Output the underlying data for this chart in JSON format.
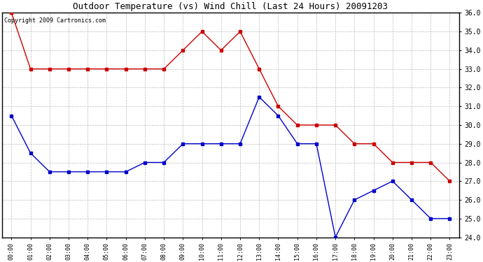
{
  "title": "Outdoor Temperature (vs) Wind Chill (Last 24 Hours) 20091203",
  "copyright_text": "Copyright 2009 Cartronics.com",
  "x_labels": [
    "00:00",
    "01:00",
    "02:00",
    "03:00",
    "04:00",
    "05:00",
    "06:00",
    "07:00",
    "08:00",
    "09:00",
    "10:00",
    "11:00",
    "12:00",
    "13:00",
    "14:00",
    "15:00",
    "16:00",
    "17:00",
    "18:00",
    "19:00",
    "20:00",
    "21:00",
    "22:00",
    "23:00"
  ],
  "red_data": [
    36.0,
    33.0,
    33.0,
    33.0,
    33.0,
    33.0,
    33.0,
    33.0,
    33.0,
    34.0,
    35.0,
    34.0,
    35.0,
    33.0,
    31.0,
    30.0,
    30.0,
    30.0,
    29.0,
    29.0,
    28.0,
    28.0,
    28.0,
    27.0
  ],
  "blue_data": [
    30.5,
    28.5,
    27.5,
    27.5,
    27.5,
    27.5,
    27.5,
    28.0,
    28.0,
    29.0,
    29.0,
    29.0,
    29.0,
    31.5,
    30.5,
    29.0,
    29.0,
    24.0,
    26.0,
    26.5,
    27.0,
    26.0,
    25.0,
    25.0
  ],
  "ylim_min": 24.0,
  "ylim_max": 36.0,
  "line_color_red": "#cc0000",
  "line_color_blue": "#0000cc",
  "bg_color": "#ffffff",
  "grid_color": "#bbbbbb",
  "title_fontsize": 9,
  "copyright_fontsize": 6,
  "marker": "s",
  "markersize": 2.5,
  "linewidth": 1.0
}
